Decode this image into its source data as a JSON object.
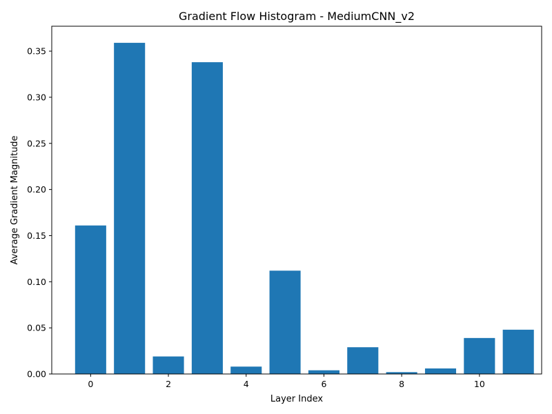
{
  "chart_data": {
    "type": "bar",
    "title": "Gradient Flow Histogram - MediumCNN_v2",
    "xlabel": "Layer Index",
    "ylabel": "Average Gradient Magnitude",
    "categories": [
      0,
      1,
      2,
      3,
      4,
      5,
      6,
      7,
      8,
      9,
      10,
      11
    ],
    "values": [
      0.161,
      0.359,
      0.019,
      0.338,
      0.008,
      0.112,
      0.004,
      0.029,
      0.002,
      0.006,
      0.039,
      0.048
    ],
    "xlim": [
      -1.0,
      11.6
    ],
    "ylim": [
      0,
      0.377
    ],
    "xticks": [
      0,
      2,
      4,
      6,
      8,
      10
    ],
    "xtick_labels": [
      "0",
      "2",
      "4",
      "6",
      "8",
      "10"
    ],
    "yticks": [
      0,
      0.05,
      0.1,
      0.15,
      0.2,
      0.25,
      0.3,
      0.35
    ],
    "ytick_labels": [
      "0.00",
      "0.05",
      "0.10",
      "0.15",
      "0.20",
      "0.25",
      "0.30",
      "0.35"
    ],
    "bar_color": "#1f77b4",
    "grid": false,
    "legend": false
  }
}
